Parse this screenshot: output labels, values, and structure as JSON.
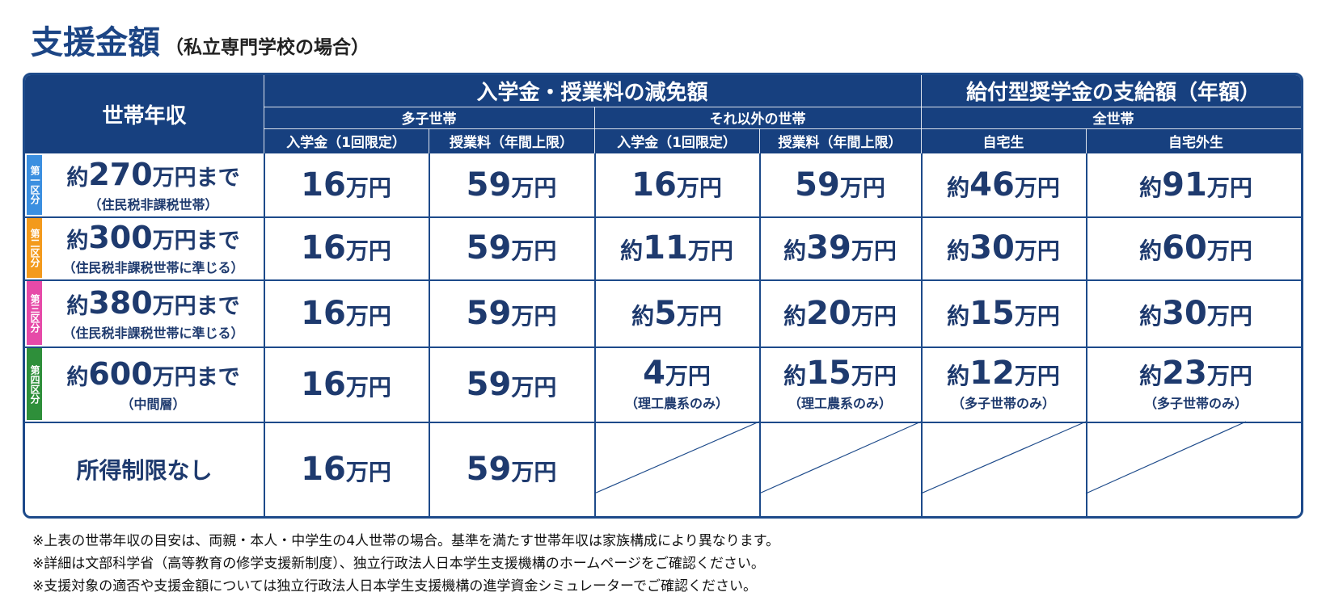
{
  "title": {
    "main": "支援金額",
    "sub": "（私立専門学校の場合）"
  },
  "header": {
    "income_label": "世帯年収",
    "reduction_label": "入学金・授業料の減免額",
    "scholarship_label": "給付型奨学金の支給額（年額）",
    "group_multi": "多子世帯",
    "group_other": "それ以外の世帯",
    "group_all": "全世帯",
    "col_admission_multi": "入学金（1回限定）",
    "col_tuition_multi": "授業料（年間上限）",
    "col_admission_other": "入学金（1回限定）",
    "col_tuition_other": "授業料（年間上限）",
    "col_home": "自宅生",
    "col_away": "自宅外生"
  },
  "rows": [
    {
      "badge": "第一区分",
      "badge_color": "#3b8fe0",
      "income_pre": "約",
      "income_num": "270",
      "income_unit": "万円まで",
      "income_note": "（住民税非課税世帯）",
      "cells": [
        {
          "pre": "",
          "num": "16",
          "unit": "万円",
          "note": ""
        },
        {
          "pre": "",
          "num": "59",
          "unit": "万円",
          "note": ""
        },
        {
          "pre": "",
          "num": "16",
          "unit": "万円",
          "note": ""
        },
        {
          "pre": "",
          "num": "59",
          "unit": "万円",
          "note": ""
        },
        {
          "pre": "約",
          "num": "46",
          "unit": "万円",
          "note": ""
        },
        {
          "pre": "約",
          "num": "91",
          "unit": "万円",
          "note": ""
        }
      ]
    },
    {
      "badge": "第二区分",
      "badge_color": "#f39a1c",
      "income_pre": "約",
      "income_num": "300",
      "income_unit": "万円まで",
      "income_note": "（住民税非課税世帯に準じる）",
      "cells": [
        {
          "pre": "",
          "num": "16",
          "unit": "万円",
          "note": ""
        },
        {
          "pre": "",
          "num": "59",
          "unit": "万円",
          "note": ""
        },
        {
          "pre": "約",
          "num": "11",
          "unit": "万円",
          "note": ""
        },
        {
          "pre": "約",
          "num": "39",
          "unit": "万円",
          "note": ""
        },
        {
          "pre": "約",
          "num": "30",
          "unit": "万円",
          "note": ""
        },
        {
          "pre": "約",
          "num": "60",
          "unit": "万円",
          "note": ""
        }
      ]
    },
    {
      "badge": "第三区分",
      "badge_color": "#e64aa8",
      "income_pre": "約",
      "income_num": "380",
      "income_unit": "万円まで",
      "income_note": "（住民税非課税世帯に準じる）",
      "cells": [
        {
          "pre": "",
          "num": "16",
          "unit": "万円",
          "note": ""
        },
        {
          "pre": "",
          "num": "59",
          "unit": "万円",
          "note": ""
        },
        {
          "pre": "約",
          "num": "5",
          "unit": "万円",
          "note": ""
        },
        {
          "pre": "約",
          "num": "20",
          "unit": "万円",
          "note": ""
        },
        {
          "pre": "約",
          "num": "15",
          "unit": "万円",
          "note": ""
        },
        {
          "pre": "約",
          "num": "30",
          "unit": "万円",
          "note": ""
        }
      ]
    },
    {
      "badge": "第四区分",
      "badge_color": "#2e8f3a",
      "income_pre": "約",
      "income_num": "600",
      "income_unit": "万円まで",
      "income_note": "（中間層）",
      "cells": [
        {
          "pre": "",
          "num": "16",
          "unit": "万円",
          "note": ""
        },
        {
          "pre": "",
          "num": "59",
          "unit": "万円",
          "note": ""
        },
        {
          "pre": "",
          "num": "4",
          "unit": "万円",
          "note": "（理工農系のみ）"
        },
        {
          "pre": "約",
          "num": "15",
          "unit": "万円",
          "note": "（理工農系のみ）"
        },
        {
          "pre": "約",
          "num": "12",
          "unit": "万円",
          "note": "（多子世帯のみ）"
        },
        {
          "pre": "約",
          "num": "23",
          "unit": "万円",
          "note": "（多子世帯のみ）"
        }
      ]
    }
  ],
  "no_limit_row": {
    "label": "所得制限なし",
    "cells": [
      {
        "pre": "",
        "num": "16",
        "unit": "万円"
      },
      {
        "pre": "",
        "num": "59",
        "unit": "万円"
      }
    ]
  },
  "notes": [
    "※上表の世帯年収の目安は、両親・本人・中学生の4人世帯の場合。基準を満たす世帯年収は家族構成により異なります。",
    "※詳細は文部科学省（高等教育の修学支援新制度）、独立行政法人日本学生支援機構のホームページをご確認ください。",
    "※支援対象の適否や支援金額については独立行政法人日本学生支援機構の進学資金シミュレーターでご確認ください。"
  ]
}
